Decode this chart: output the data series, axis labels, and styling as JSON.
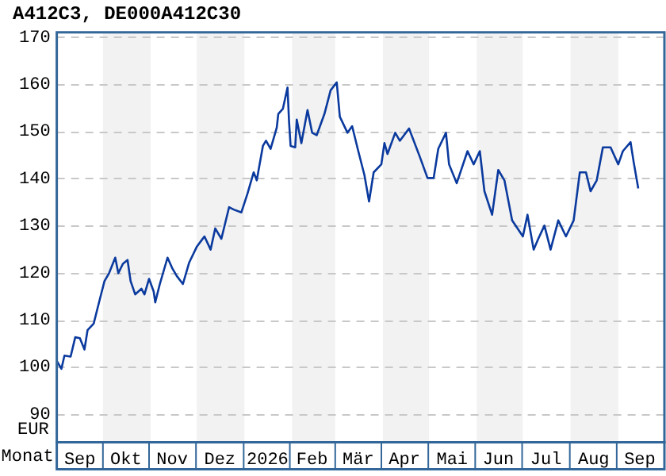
{
  "chart_data": {
    "type": "line",
    "title": "A412C3, DE000A412C30",
    "xlabel": "Monat",
    "ylabel": "EUR",
    "x": [
      "2025-09-01",
      "2025-09-04",
      "2025-09-06",
      "2025-09-10",
      "2025-09-13",
      "2025-09-16",
      "2025-09-19",
      "2025-09-21",
      "2025-09-25",
      "2025-09-28",
      "2025-10-02",
      "2025-10-05",
      "2025-10-09",
      "2025-10-11",
      "2025-10-14",
      "2025-10-17",
      "2025-10-19",
      "2025-10-22",
      "2025-10-26",
      "2025-10-28",
      "2025-10-31",
      "2025-11-03",
      "2025-11-04",
      "2025-11-07",
      "2025-11-12",
      "2025-11-15",
      "2025-11-18",
      "2025-11-22",
      "2025-11-26",
      "2025-12-01",
      "2025-12-06",
      "2025-12-10",
      "2025-12-13",
      "2025-12-17",
      "2025-12-22",
      "2025-12-25",
      "2025-12-30",
      "2026-01-03",
      "2026-01-07",
      "2026-01-09",
      "2026-01-13",
      "2026-01-15",
      "2026-01-18",
      "2026-01-22",
      "2026-01-23",
      "2026-01-26",
      "2026-01-29",
      "2026-01-30",
      "2026-01-31",
      "2026-02-03",
      "2026-02-04",
      "2026-02-07",
      "2026-02-11",
      "2026-02-14",
      "2026-02-17",
      "2026-02-22",
      "2026-02-26",
      "2026-03-02",
      "2026-03-04",
      "2026-03-09",
      "2026-03-12",
      "2026-03-16",
      "2026-03-20",
      "2026-03-23",
      "2026-03-26",
      "2026-03-31",
      "2026-04-02",
      "2026-04-04",
      "2026-04-09",
      "2026-04-12",
      "2026-04-18",
      "2026-04-25",
      "2026-04-30",
      "2026-05-04",
      "2026-05-07",
      "2026-05-12",
      "2026-05-14",
      "2026-05-19",
      "2026-05-26",
      "2026-05-30",
      "2026-06-03",
      "2026-06-06",
      "2026-06-11",
      "2026-06-15",
      "2026-06-19",
      "2026-06-24",
      "2026-07-01",
      "2026-07-04",
      "2026-07-08",
      "2026-07-11",
      "2026-07-15",
      "2026-07-19",
      "2026-07-24",
      "2026-07-29",
      "2026-08-03",
      "2026-08-07",
      "2026-08-11",
      "2026-08-14",
      "2026-08-18",
      "2026-08-22",
      "2026-08-27",
      "2026-09-01",
      "2026-09-04",
      "2026-09-09",
      "2026-09-11",
      "2026-09-14"
    ],
    "series": [
      {
        "color": "#0b3a9e",
        "values": [
          101.3,
          99.6,
          102.4,
          102.2,
          106.3,
          106.1,
          103.7,
          107.8,
          109.2,
          113.1,
          118.2,
          119.9,
          123.2,
          119.9,
          121.9,
          122.7,
          118.2,
          115.4,
          116.6,
          115.4,
          118.7,
          116.0,
          113.7,
          117.6,
          123.2,
          121.0,
          119.3,
          117.6,
          122.1,
          125.5,
          127.7,
          124.9,
          129.4,
          127.2,
          133.9,
          133.4,
          132.8,
          136.8,
          141.3,
          139.6,
          146.9,
          148.0,
          146.3,
          150.8,
          153.7,
          154.8,
          159.3,
          152.0,
          146.9,
          146.6,
          152.5,
          147.5,
          154.5,
          149.7,
          149.2,
          153.7,
          158.7,
          160.4,
          153.1,
          149.7,
          151.1,
          145.8,
          140.7,
          135.1,
          141.3,
          143.0,
          147.5,
          145.2,
          149.7,
          148.0,
          150.6,
          144.6,
          140.1,
          140.1,
          146.3,
          149.7,
          143.0,
          139.0,
          145.8,
          143.0,
          145.8,
          137.3,
          132.3,
          141.8,
          139.6,
          131.1,
          127.7,
          132.3,
          124.9,
          127.2,
          130.0,
          124.9,
          131.1,
          127.7,
          131.1,
          141.3,
          141.3,
          137.3,
          139.6,
          146.6,
          146.6,
          143.0,
          145.8,
          147.7,
          143.5,
          137.9
        ]
      }
    ],
    "xlim": [
      "2025-09-01",
      "2026-10-01"
    ],
    "xticks": [
      {
        "value": "2025-09-16",
        "label": "Sep"
      },
      {
        "value": "2025-10-16",
        "label": "Okt"
      },
      {
        "value": "2025-11-15",
        "label": "Nov"
      },
      {
        "value": "2025-12-16",
        "label": "Dez"
      },
      {
        "value": "2026-01-16",
        "label": "2026"
      },
      {
        "value": "2026-02-14",
        "label": "Feb"
      },
      {
        "value": "2026-03-16",
        "label": "Mär"
      },
      {
        "value": "2026-04-15",
        "label": "Apr"
      },
      {
        "value": "2026-05-16",
        "label": "Mai"
      },
      {
        "value": "2026-06-15",
        "label": "Jun"
      },
      {
        "value": "2026-07-16",
        "label": "Jul"
      },
      {
        "value": "2026-08-16",
        "label": "Aug"
      },
      {
        "value": "2026-09-15",
        "label": "Sep"
      }
    ],
    "ylim": [
      84,
      171
    ],
    "yticks": [
      90,
      100,
      110,
      120,
      130,
      140,
      150,
      160,
      170
    ],
    "bands": [
      {
        "axis": "x",
        "from": "2025-10-01",
        "to": "2025-11-01",
        "color": "#f2f2f2"
      },
      {
        "axis": "x",
        "from": "2025-12-01",
        "to": "2026-01-01",
        "color": "#f2f2f2"
      },
      {
        "axis": "x",
        "from": "2026-02-01",
        "to": "2026-03-01",
        "color": "#f2f2f2"
      },
      {
        "axis": "x",
        "from": "2026-04-01",
        "to": "2026-05-01",
        "color": "#f2f2f2"
      },
      {
        "axis": "x",
        "from": "2026-06-01",
        "to": "2026-07-01",
        "color": "#f2f2f2"
      },
      {
        "axis": "x",
        "from": "2026-08-01",
        "to": "2026-09-01",
        "color": "#f2f2f2"
      }
    ],
    "grid": "y",
    "legend": false,
    "marker": "none",
    "line_style": "solid"
  }
}
